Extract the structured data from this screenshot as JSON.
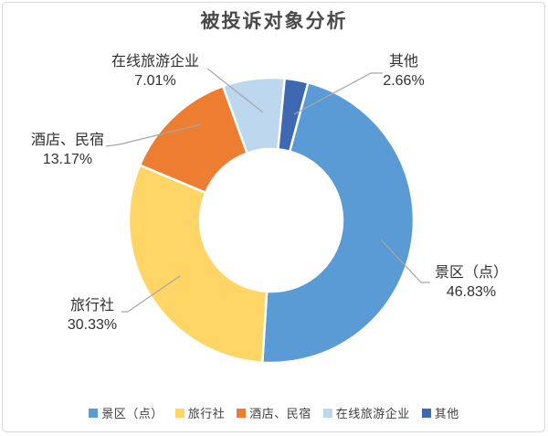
{
  "title": "被投诉对象分析",
  "chart_data": {
    "type": "pie",
    "subtype": "donut",
    "title": "被投诉对象分析",
    "categories": [
      "景区（点）",
      "旅行社",
      "酒店、民宿",
      "在线旅游企业",
      "其他"
    ],
    "values": [
      46.83,
      30.33,
      13.17,
      7.01,
      2.66
    ],
    "value_labels": [
      "46.83%",
      "30.33%",
      "13.17%",
      "7.01%",
      "2.66%"
    ],
    "colors": [
      "#5B9BD5",
      "#FFD566",
      "#ED7D31",
      "#BDD7EE",
      "#3E68B2"
    ],
    "unit": "%",
    "start_angle_deg": 15,
    "clockwise": true,
    "inner_radius_ratio": 0.5,
    "legend_position": "bottom",
    "leader_line_color": "#A6A6A6",
    "slice_border_color": "#FFFFFF"
  }
}
